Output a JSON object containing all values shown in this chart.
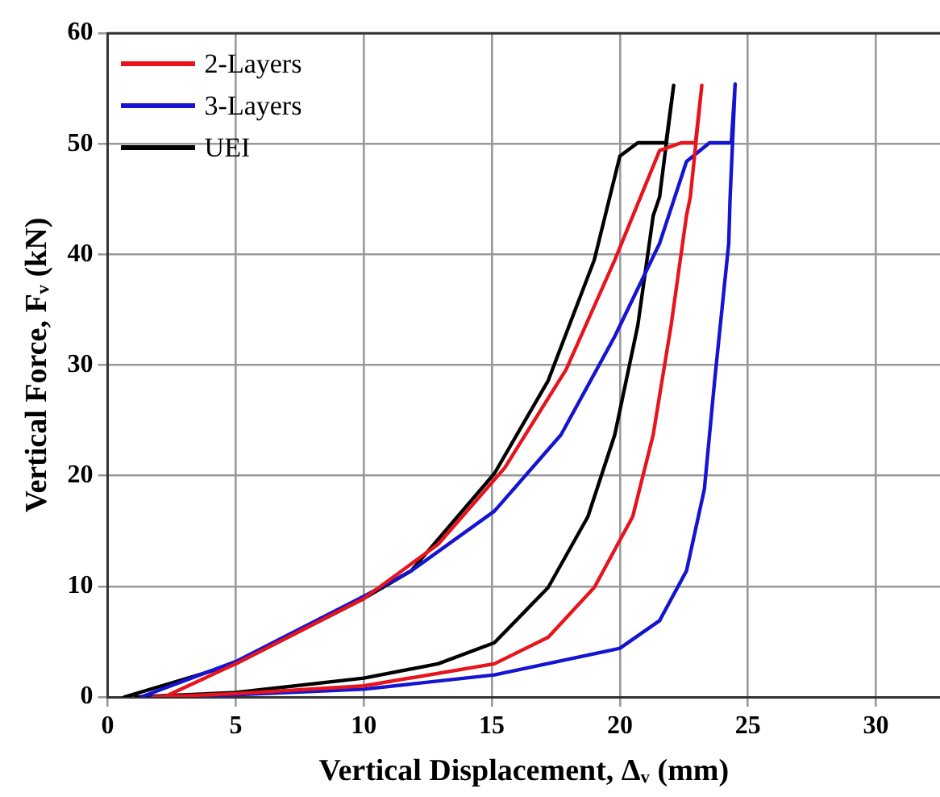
{
  "chart_data": {
    "type": "line",
    "xlabel": "Vertical Displacement, Δᵥ (mm)",
    "ylabel": "Vertical Force, Fᵥ (kN)",
    "xlim": [
      0,
      32.5
    ],
    "xticks": [
      0,
      5,
      10,
      15,
      20,
      25,
      30
    ],
    "ylim": [
      0,
      60
    ],
    "yticks": [
      0,
      10,
      20,
      30,
      40,
      50,
      60
    ],
    "grid": true,
    "legend": "top left",
    "marker": "none",
    "line_style": "solid",
    "series": [
      {
        "name": "2-Layers",
        "color": "#e8141c",
        "x": [
          2.2,
          5,
          10,
          12.9,
          15.5,
          17.9,
          19.8,
          21.55,
          22.4,
          22.95,
          23.2,
          22.75,
          22.6,
          22,
          21.3,
          20.5,
          19,
          17.2,
          15.1,
          10,
          5,
          1.8
        ],
        "values": [
          0,
          3,
          8.9,
          13.8,
          20.7,
          29.6,
          39.5,
          49.4,
          50.1,
          50.1,
          55.3,
          45.2,
          43.5,
          33.6,
          23.7,
          16.3,
          9.9,
          5.4,
          3,
          1,
          0.3,
          0
        ]
      },
      {
        "name": "3-Layers",
        "color": "#1414d2",
        "x": [
          1.3,
          5,
          10,
          11.85,
          15.1,
          17.7,
          19.8,
          21.55,
          22.6,
          23.5,
          24.35,
          24.5,
          24.3,
          24.25,
          23.7,
          23.3,
          22.6,
          21.55,
          20,
          15.1,
          10,
          5,
          1.7
        ],
        "values": [
          0,
          3.2,
          9.1,
          11.4,
          16.8,
          23.7,
          32.6,
          41,
          48.4,
          50.1,
          50.1,
          55.4,
          44.9,
          41,
          28.6,
          18.8,
          11.4,
          6.9,
          4.4,
          2,
          0.7,
          0.2,
          0
        ]
      },
      {
        "name": "UEI",
        "color": "#000000",
        "x": [
          0.65,
          5,
          10,
          11.85,
          15.1,
          17.2,
          19,
          20,
          20.7,
          21.8,
          22.1,
          21.55,
          21.3,
          20.7,
          19.8,
          18.75,
          17.2,
          15.1,
          12.9,
          10,
          5,
          1.1
        ],
        "values": [
          0,
          3,
          8.9,
          11.4,
          20.2,
          28.6,
          39.5,
          48.9,
          50.1,
          50.1,
          55.3,
          45.2,
          43.5,
          33.6,
          23.7,
          16.3,
          9.9,
          4.9,
          3,
          1.7,
          0.4,
          0
        ]
      }
    ]
  }
}
